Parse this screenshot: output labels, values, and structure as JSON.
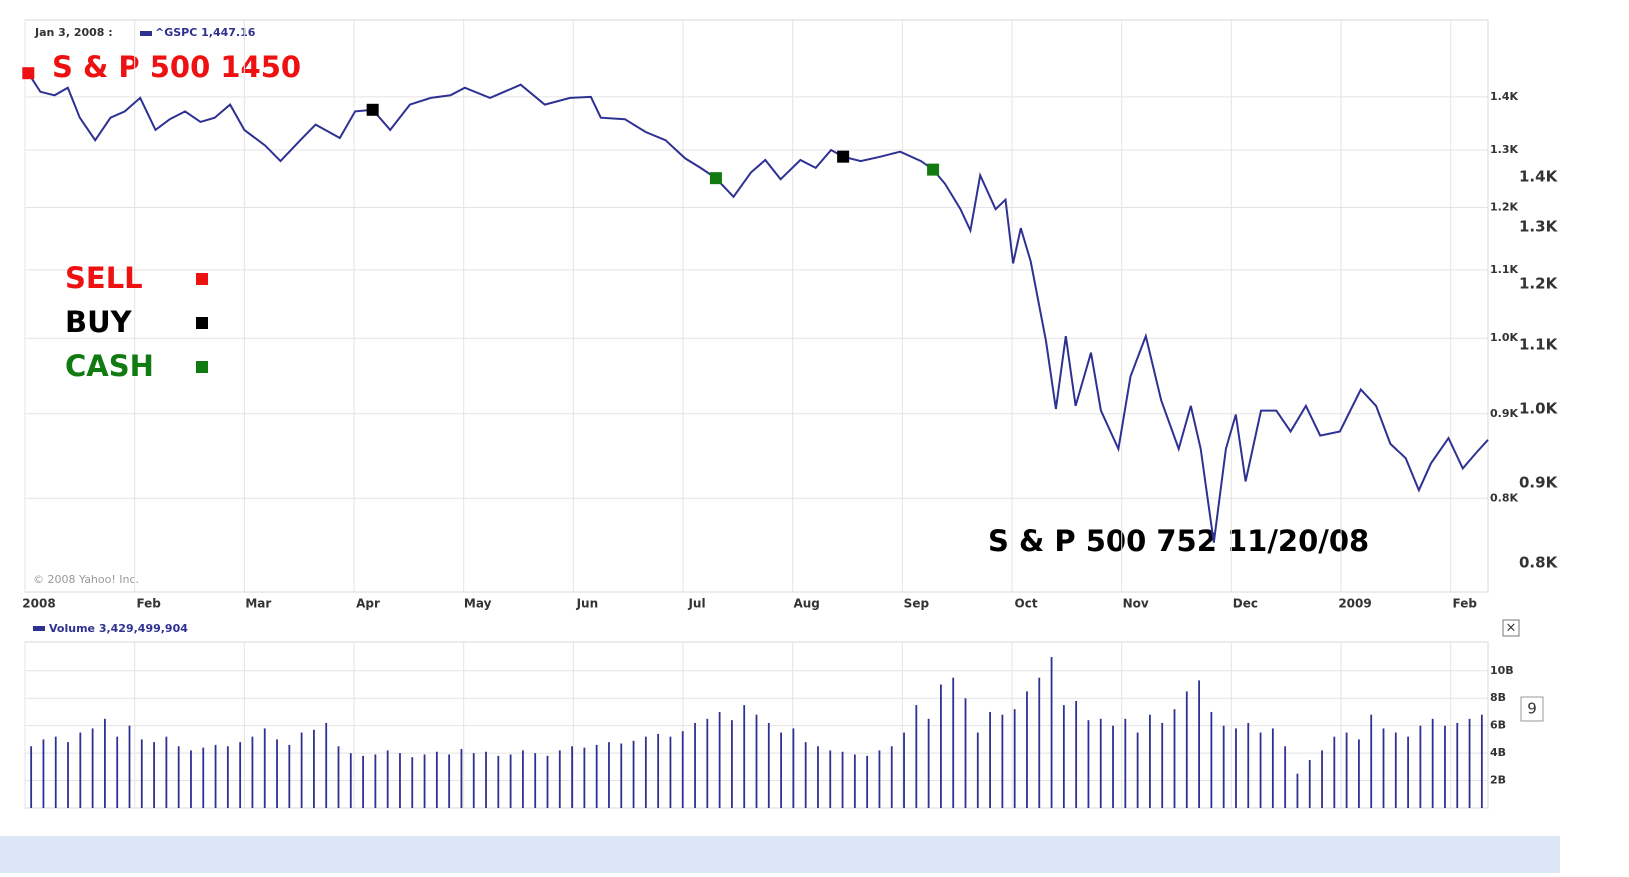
{
  "chart_data": {
    "type": "line",
    "header_date": "Jan 3, 2008 :",
    "header_quote": "^GSPC 1,447.16",
    "copyright": "© 2008 Yahoo! Inc.",
    "annotations": [
      "S & P 500 1450",
      "S & P 500 752  11/20/08"
    ],
    "log_scale": true,
    "grid": true,
    "xlim": [
      0,
      13.34
    ],
    "xticks": [
      {
        "value": 0,
        "label": "2008"
      },
      {
        "value": 1,
        "label": "Feb"
      },
      {
        "value": 2,
        "label": "Mar"
      },
      {
        "value": 3,
        "label": "Apr"
      },
      {
        "value": 4,
        "label": "May"
      },
      {
        "value": 5,
        "label": "Jun"
      },
      {
        "value": 6,
        "label": "Jul"
      },
      {
        "value": 7,
        "label": "Aug"
      },
      {
        "value": 8,
        "label": "Sep"
      },
      {
        "value": 9,
        "label": "Oct"
      },
      {
        "value": 10,
        "label": "Nov"
      },
      {
        "value": 11,
        "label": "Dec"
      },
      {
        "value": 12,
        "label": "2009"
      },
      {
        "value": 13,
        "label": "Feb"
      }
    ],
    "ylim": [
      702,
      1505
    ],
    "yticks": [
      {
        "value": 800,
        "label": "0.8K"
      },
      {
        "value": 900,
        "label": "0.9K"
      },
      {
        "value": 1000,
        "label": "1.0K"
      },
      {
        "value": 1100,
        "label": "1.1K"
      },
      {
        "value": 1200,
        "label": "1.2K"
      },
      {
        "value": 1300,
        "label": "1.3K"
      },
      {
        "value": 1400,
        "label": "1.4K"
      }
    ],
    "series": [
      {
        "color": "#2e3192",
        "x": [
          0.03,
          0.14,
          0.27,
          0.39,
          0.5,
          0.64,
          0.78,
          0.91,
          1.05,
          1.19,
          1.32,
          1.46,
          1.6,
          1.73,
          1.87,
          2.0,
          2.19,
          2.33,
          2.51,
          2.65,
          2.87,
          3.01,
          3.17,
          3.33,
          3.51,
          3.7,
          3.88,
          4.01,
          4.24,
          4.52,
          4.74,
          4.97,
          5.16,
          5.25,
          5.47,
          5.66,
          5.84,
          6.02,
          6.16,
          6.3,
          6.46,
          6.62,
          6.75,
          6.89,
          7.07,
          7.21,
          7.35,
          7.46,
          7.62,
          7.8,
          7.98,
          8.17,
          8.28,
          8.39,
          8.53,
          8.62,
          8.71,
          8.85,
          8.94,
          9.01,
          9.08,
          9.17,
          9.31,
          9.4,
          9.49,
          9.58,
          9.72,
          9.81,
          9.97,
          10.08,
          10.22,
          10.36,
          10.52,
          10.63,
          10.72,
          10.84,
          10.95,
          11.04,
          11.13,
          11.27,
          11.41,
          11.54,
          11.68,
          11.81,
          11.99,
          12.18,
          12.32,
          12.45,
          12.59,
          12.71,
          12.82,
          12.98,
          13.11,
          13.23,
          13.34
        ],
        "values": [
          1447,
          1410,
          1403,
          1418,
          1360,
          1318,
          1360,
          1372,
          1398,
          1337,
          1357,
          1372,
          1352,
          1360,
          1385,
          1337,
          1308,
          1280,
          1318,
          1347,
          1322,
          1372,
          1375,
          1337,
          1385,
          1398,
          1403,
          1418,
          1398,
          1424,
          1385,
          1398,
          1400,
          1360,
          1357,
          1333,
          1318,
          1285,
          1268,
          1250,
          1218,
          1260,
          1282,
          1248,
          1282,
          1268,
          1300,
          1288,
          1280,
          1288,
          1297,
          1280,
          1265,
          1240,
          1197,
          1162,
          1255,
          1197,
          1213,
          1110,
          1166,
          1113,
          996,
          906,
          1003,
          910,
          980,
          904,
          857,
          948,
          1003,
          917,
          857,
          910,
          857,
          752,
          857,
          899,
          819,
          904,
          904,
          878,
          910,
          873,
          878,
          931,
          910,
          863,
          846,
          809,
          840,
          870,
          834,
          852,
          868
        ]
      }
    ],
    "markers": [
      {
        "name": "SELL",
        "color": "#ee1111",
        "x": [
          0.03
        ],
        "values": [
          1447
        ]
      },
      {
        "name": "BUY",
        "color": "#000000",
        "x": [
          3.17,
          7.46
        ],
        "values": [
          1375,
          1288
        ]
      },
      {
        "name": "CASH",
        "color": "#117a11",
        "x": [
          6.3,
          8.28
        ],
        "values": [
          1250,
          1265
        ]
      }
    ],
    "volume": {
      "type": "bar",
      "title": "Volume 3,429,499,904",
      "color": "#2e3192",
      "ylim": [
        0,
        12.1
      ],
      "yticks": [
        {
          "value": 2,
          "label": "2B"
        },
        {
          "value": 4,
          "label": "4B"
        },
        {
          "value": 6,
          "label": "6B"
        },
        {
          "value": 8,
          "label": "8B"
        },
        {
          "value": 10,
          "label": "10B"
        }
      ],
      "values": [
        4.5,
        5,
        5.2,
        4.8,
        5.5,
        5.8,
        6.5,
        5.2,
        6,
        5,
        4.8,
        5.2,
        4.5,
        4.2,
        4.4,
        4.6,
        4.5,
        4.8,
        5.2,
        5.8,
        5,
        4.6,
        5.5,
        5.7,
        6.2,
        4.5,
        4,
        3.8,
        3.9,
        4.2,
        4,
        3.7,
        3.9,
        4.1,
        3.9,
        4.3,
        4,
        4.1,
        3.8,
        3.9,
        4.2,
        4,
        3.8,
        4.2,
        4.5,
        4.4,
        4.6,
        4.8,
        4.7,
        4.9,
        5.2,
        5.4,
        5.2,
        5.6,
        6.2,
        6.5,
        7,
        6.4,
        7.5,
        6.8,
        6.2,
        5.5,
        5.8,
        4.8,
        4.5,
        4.2,
        4.1,
        3.9,
        3.8,
        4.2,
        4.5,
        5.5,
        7.5,
        6.5,
        9,
        9.5,
        8,
        5.5,
        7,
        6.8,
        7.2,
        8.5,
        9.5,
        11,
        7.5,
        7.8,
        6.4,
        6.5,
        6,
        6.5,
        5.5,
        6.8,
        6.2,
        7.2,
        8.5,
        9.3,
        7,
        6,
        5.8,
        6.2,
        5.5,
        5.8,
        4.5,
        2.5,
        3.5,
        4.2,
        5.2,
        5.5,
        5,
        6.8,
        5.8,
        5.5,
        5.2,
        6,
        6.5,
        6,
        6.2,
        6.5,
        6.8
      ]
    },
    "fragments": [
      "1.4K",
      "1.3K",
      "1.2K",
      "1.1K",
      "1.0K",
      "0.9K",
      "0.8K",
      "9",
      "×"
    ]
  }
}
